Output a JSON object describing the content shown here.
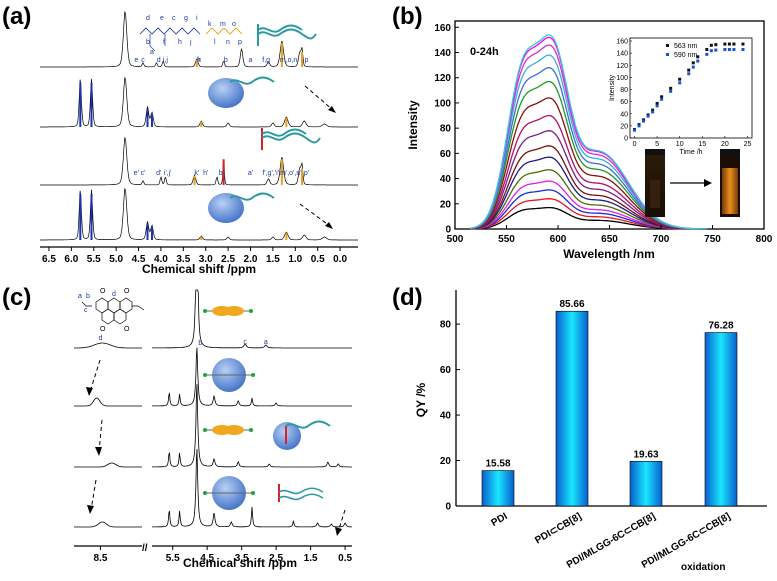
{
  "colors": {
    "blue": "#1e2fb8",
    "orange": "#e8a020",
    "red": "#d8202a",
    "teal": "#2a9aa0",
    "cb8": "#5a86d6",
    "barTop": "#00e8ff",
    "barMid": "#0aa8e0"
  },
  "chart_data": [
    {
      "panel": "(a)",
      "type": "nmr_spectra",
      "xlabel": "Chemical shift /ppm",
      "xlim": [
        6.7,
        -0.4
      ],
      "xticks": [
        "6.5",
        "6.0",
        "5.5",
        "5.0",
        "4.5",
        "4.0",
        "3.5",
        "3.0",
        "2.5",
        "2.0",
        "1.5",
        "1.0",
        "0.5",
        "0.0"
      ],
      "traces": 4,
      "peak_labels_top": [
        "a",
        "b",
        "c",
        "d",
        "e",
        "f,g",
        "h",
        "i,j",
        "k",
        "m,o,n",
        "p"
      ],
      "peak_labels_bottom": [
        "a'",
        "b'",
        "c'",
        "d'",
        "e'",
        "f',g','i'",
        "h'",
        "i',j'",
        "k'",
        "m',o',n'",
        "p'"
      ],
      "structure_labels": [
        "d",
        "b",
        "a",
        "f",
        "h",
        "j",
        "k",
        "m",
        "o",
        "l",
        "n",
        "p",
        "e",
        "c",
        "g",
        "i"
      ]
    },
    {
      "panel": "(b)",
      "type": "line",
      "annotation": "0-24h",
      "xlabel": "Wavelength /nm",
      "ylabel": "Intensity",
      "xlim": [
        500,
        800
      ],
      "ylim": [
        0,
        165
      ],
      "xticks": [
        "500",
        "550",
        "600",
        "650",
        "700",
        "750",
        "800"
      ],
      "yticks": [
        "0",
        "20",
        "40",
        "60",
        "80",
        "100",
        "120",
        "140",
        "160"
      ],
      "series_peak_intensity": [
        17,
        24,
        31,
        38,
        47,
        57,
        66,
        78,
        90,
        104,
        117,
        128,
        138,
        146,
        152,
        154
      ],
      "series_colors": [
        "#000000",
        "#e8161c",
        "#1a2cd9",
        "#e81ee8",
        "#4d6b0a",
        "#1a1a8c",
        "#7a0f0f",
        "#7a1a8f",
        "#b00f6a",
        "#8a1010",
        "#1d9c1d",
        "#3a6fd6",
        "#3ab0e0",
        "#d030d0",
        "#ff00ff",
        "#2bd4d4"
      ],
      "inset": {
        "xlabel": "Time /h",
        "ylabel": "Intensity",
        "xlim": [
          -1,
          26
        ],
        "ylim": [
          0,
          165
        ],
        "xticks": [
          "0",
          "5",
          "10",
          "15",
          "20",
          "25"
        ],
        "yticks": [
          "0",
          "20",
          "40",
          "60",
          "80",
          "100",
          "120",
          "140",
          "160"
        ],
        "legend": [
          "563 nm",
          "590 nm"
        ],
        "time": [
          0,
          1,
          2,
          3,
          4,
          5,
          6,
          8,
          10,
          12,
          13,
          14,
          16,
          17,
          18,
          20,
          21,
          22,
          24
        ],
        "series_563": [
          14,
          22,
          30,
          38,
          46,
          57,
          68,
          82,
          97,
          112,
          124,
          134,
          146,
          153,
          154,
          155,
          155,
          155,
          155
        ],
        "series_590": [
          13,
          20,
          28,
          36,
          43,
          53,
          64,
          77,
          91,
          106,
          117,
          127,
          138,
          144,
          145,
          146,
          146,
          146,
          146
        ]
      }
    },
    {
      "panel": "(c)",
      "type": "nmr_spectra",
      "xlabel": "Chemical shift /ppm",
      "xticks": [
        "8.5",
        "5.5",
        "4.5",
        "3.5",
        "2.5",
        "1.5",
        "0.5"
      ],
      "axis_break": "//",
      "traces": 4,
      "peak_labels": [
        "d",
        "b",
        "c",
        "a"
      ],
      "structure_labels": [
        "a",
        "b",
        "c",
        "d",
        "O",
        "O",
        "O",
        "O"
      ]
    },
    {
      "panel": "(d)",
      "type": "bar",
      "ylabel": "QY /%",
      "ylim": [
        0,
        95
      ],
      "yticks": [
        "0",
        "20",
        "40",
        "60",
        "80"
      ],
      "categories": [
        "PDI",
        "PDI⊂CB[8]",
        "PDI/MLGG-6C⊂CB[8]",
        "PDI/MLGG-6C⊂CB[8]"
      ],
      "category_notes": [
        "",
        "",
        "",
        "oxidation"
      ],
      "values": [
        15.58,
        85.66,
        19.63,
        76.28
      ],
      "labels": [
        "15.58",
        "85.66",
        "19.63",
        "76.28"
      ]
    }
  ]
}
